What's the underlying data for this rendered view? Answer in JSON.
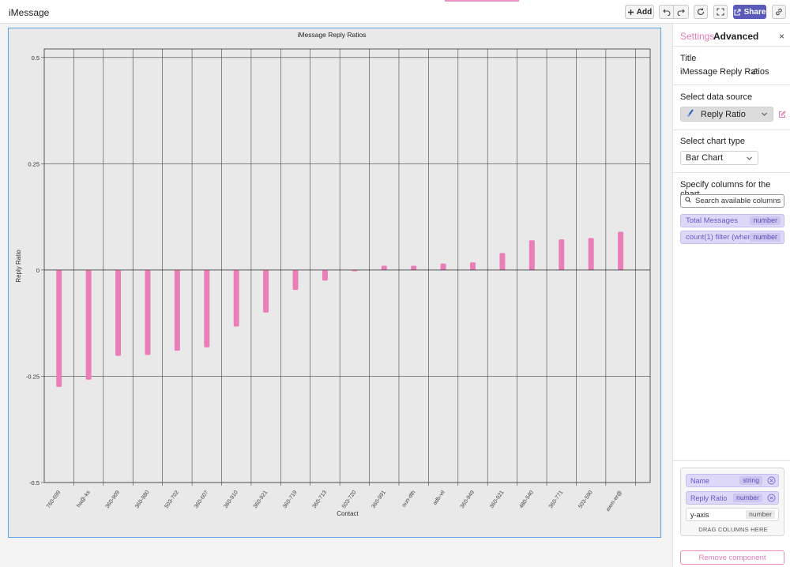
{
  "app": {
    "title": "iMessage"
  },
  "toolbar": {
    "add_label": "Add",
    "share_label": "Share"
  },
  "icons": {
    "add": "plus-icon",
    "undo": "undo-icon",
    "redo": "redo-icon",
    "refresh": "refresh-icon",
    "fullscreen": "fullscreen-icon",
    "share": "share-icon",
    "link": "link-icon"
  },
  "colors": {
    "bar": "#ea7fb8",
    "accent": "#e07bb3",
    "share": "#5a5bb8",
    "selection": "#5aa3e8"
  },
  "panel": {
    "tabs": {
      "settings": "Settings",
      "advanced": "Advanced"
    },
    "close_label": "×",
    "title_label": "Title",
    "title_value": "iMessage Reply Ratios",
    "datasource_label": "Select data source",
    "datasource_value": "Reply Ratio",
    "charttype_label": "Select chart type",
    "charttype_value": "Bar Chart",
    "columns_label": "Specify columns for the chart",
    "search_placeholder": "Search available columns",
    "available_columns": [
      {
        "name": "Total Messages",
        "type": "number"
      },
      {
        "name": "count(1) filter (where m...",
        "type": "number"
      }
    ],
    "axes": {
      "x": {
        "name": "Name",
        "type": "string"
      },
      "y": {
        "name": "Reply Ratio",
        "type": "number"
      },
      "y_axis": {
        "name": "y-axis",
        "type": "number"
      }
    },
    "drag_hint": "DRAG COLUMNS HERE",
    "remove_label": "Remove component"
  },
  "chart_data": {
    "type": "bar",
    "title": "iMessage Reply Ratios",
    "xlabel": "Contact",
    "ylabel": "Reply Ratio",
    "ylim": [
      -0.5,
      0.52
    ],
    "yticks": [
      "0.5",
      "0.25",
      "0",
      "-0.25",
      "-0.5"
    ],
    "ytick_values": [
      0.5,
      0.25,
      0,
      -0.25,
      -0.5
    ],
    "grid": true,
    "categories": [
      "760-699",
      "ha@-ks",
      "360-909",
      "360-980",
      "503-702",
      "360-607",
      "360-910",
      "360-921",
      "360-719",
      "360-713",
      "503-720",
      "360-991",
      "oun-dth",
      "adb-vil",
      "360-949",
      "360-921",
      "480-540",
      "360-771",
      "503-590",
      "awm-er@"
    ],
    "values": [
      -0.275,
      -0.258,
      -0.202,
      -0.2,
      -0.19,
      -0.182,
      -0.133,
      -0.1,
      -0.047,
      -0.025,
      -0.003,
      0.01,
      0.01,
      0.015,
      0.018,
      0.04,
      0.07,
      0.072,
      0.075,
      0.09
    ]
  }
}
